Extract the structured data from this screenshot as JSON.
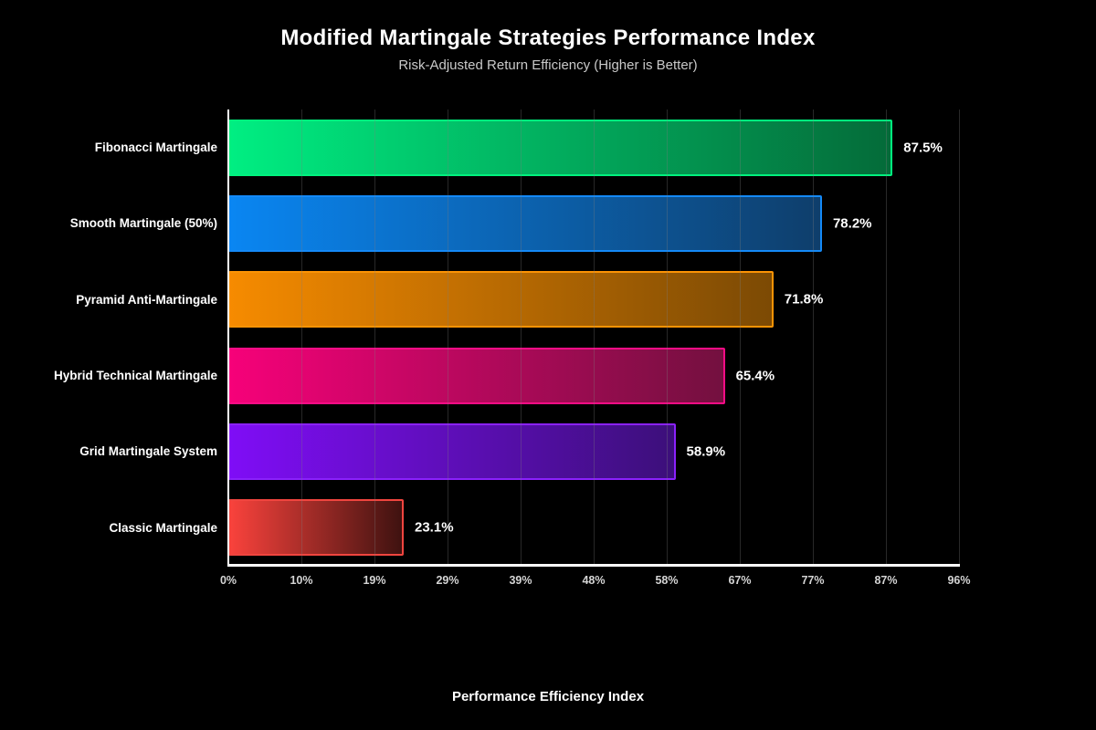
{
  "header": {
    "title": "Modified Martingale Strategies Performance Index",
    "subtitle": "Risk-Adjusted Return Efficiency (Higher is Better)"
  },
  "chart_data": {
    "type": "bar",
    "orientation": "horizontal",
    "title": "Modified Martingale Strategies Performance Index",
    "subtitle": "Risk-Adjusted Return Efficiency (Higher is Better)",
    "xlabel": "Performance Efficiency Index",
    "ylabel": "",
    "xlim": [
      0,
      96.25
    ],
    "grid": "vertical",
    "legend": "none",
    "categories": [
      "Fibonacci Martingale",
      "Smooth Martingale (50%)",
      "Pyramid Anti-Martingale",
      "Hybrid Technical Martingale",
      "Grid Martingale System",
      "Classic Martingale"
    ],
    "values": [
      87.5,
      78.2,
      71.8,
      65.4,
      58.9,
      23.1
    ],
    "value_labels": [
      "87.5%",
      "78.2%",
      "71.8%",
      "65.4%",
      "58.9%",
      "23.1%"
    ],
    "xticks": [
      "0%",
      "10%",
      "19%",
      "29%",
      "39%",
      "48%",
      "58%",
      "67%",
      "77%",
      "87%",
      "96%"
    ],
    "bar_colors": [
      {
        "start": "#00ee82",
        "end": "#046b39",
        "border": "#00f27e"
      },
      {
        "start": "#0a86f2",
        "end": "#0e3e6b",
        "border": "#1489f7"
      },
      {
        "start": "#f68b00",
        "end": "#7c4a04",
        "border": "#fb9305"
      },
      {
        "start": "#f60179",
        "end": "#73103f",
        "border": "#fb0c86"
      },
      {
        "start": "#7f0df6",
        "end": "#3c0f7a",
        "border": "#8b21fb"
      },
      {
        "start": "#f9423c",
        "end": "#3f1210",
        "border": "#f0453f"
      }
    ],
    "colors": {
      "background": "#000000",
      "title_text": "#ffffff",
      "subtitle_text": "#c9c9c9",
      "tick_text": "#d4d4d4",
      "value_text": "#ffffff",
      "spine": "#ffffff",
      "grid": "#2e2e2e"
    }
  }
}
